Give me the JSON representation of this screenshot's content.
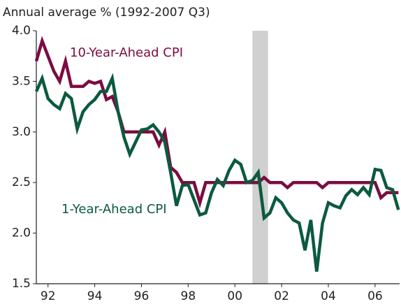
{
  "chart_data": {
    "type": "line",
    "title": "Annual average % (1992-2007 Q3)",
    "x": [
      1992,
      1992.25,
      1992.5,
      1992.75,
      1993,
      1993.25,
      1993.5,
      1993.75,
      1994,
      1994.25,
      1994.5,
      1994.75,
      1995,
      1995.25,
      1995.5,
      1995.75,
      1996,
      1996.25,
      1996.5,
      1996.75,
      1997,
      1997.25,
      1997.5,
      1997.75,
      1998,
      1998.25,
      1998.5,
      1998.75,
      1999,
      1999.25,
      1999.5,
      1999.75,
      2000,
      2000.25,
      2000.5,
      2000.75,
      2001,
      2001.25,
      2001.5,
      2001.75,
      2002,
      2002.25,
      2002.5,
      2002.75,
      2003,
      2003.25,
      2003.5,
      2003.75,
      2004,
      2004.25,
      2004.5,
      2004.75,
      2005,
      2005.25,
      2005.5,
      2005.75,
      2006,
      2006.25,
      2006.5,
      2006.75,
      2007,
      2007.25,
      2007.5
    ],
    "series": [
      {
        "name": "10-Year-Ahead CPI",
        "color": "#7b0c42",
        "values": [
          3.7,
          3.9,
          3.75,
          3.6,
          3.5,
          3.7,
          3.45,
          3.45,
          3.45,
          3.5,
          3.48,
          3.5,
          3.32,
          3.35,
          3.2,
          3.0,
          3.0,
          3.0,
          3.0,
          3.0,
          3.0,
          2.87,
          3.0,
          2.65,
          2.6,
          2.5,
          2.5,
          2.5,
          2.3,
          2.5,
          2.5,
          2.5,
          2.5,
          2.5,
          2.5,
          2.5,
          2.5,
          2.5,
          2.5,
          2.55,
          2.5,
          2.5,
          2.5,
          2.45,
          2.5,
          2.5,
          2.5,
          2.5,
          2.5,
          2.45,
          2.5,
          2.5,
          2.5,
          2.5,
          2.5,
          2.5,
          2.5,
          2.5,
          2.5,
          2.35,
          2.4,
          2.4,
          2.4
        ]
      },
      {
        "name": "1-Year-Ahead CPI",
        "color": "#0b5a3e",
        "values": [
          3.4,
          3.53,
          3.33,
          3.27,
          3.23,
          3.38,
          3.33,
          3.03,
          3.2,
          3.27,
          3.32,
          3.4,
          3.4,
          3.53,
          3.2,
          2.95,
          2.78,
          2.9,
          3.02,
          3.03,
          3.07,
          3.0,
          2.9,
          2.6,
          2.27,
          2.47,
          2.48,
          2.33,
          2.18,
          2.2,
          2.4,
          2.53,
          2.47,
          2.62,
          2.72,
          2.68,
          2.5,
          2.52,
          2.6,
          2.15,
          2.2,
          2.35,
          2.3,
          2.2,
          2.13,
          2.1,
          1.83,
          2.13,
          1.62,
          2.1,
          2.3,
          2.27,
          2.25,
          2.37,
          2.43,
          2.38,
          2.45,
          2.38,
          2.63,
          2.62,
          2.45,
          2.43,
          2.23
        ]
      }
    ],
    "shaded_region": [
      2001.25,
      2001.92
    ],
    "shaded_color": "#d0d0d0",
    "xlim": [
      1992,
      2007.55
    ],
    "xticks": [
      {
        "value": 1992.5,
        "label": "92"
      },
      {
        "value": 1994.5,
        "label": "94"
      },
      {
        "value": 1996.5,
        "label": "96"
      },
      {
        "value": 1998.5,
        "label": "98"
      },
      {
        "value": 2000.5,
        "label": "00"
      },
      {
        "value": 2002.5,
        "label": "02"
      },
      {
        "value": 2004.5,
        "label": "04"
      },
      {
        "value": 2006.5,
        "label": "06"
      }
    ],
    "ylim": [
      1.5,
      4
    ],
    "yticks": [
      {
        "value": 1.5,
        "label": "1.5"
      },
      {
        "value": 2,
        "label": "2.0"
      },
      {
        "value": 2.5,
        "label": "2.5"
      },
      {
        "value": 3,
        "label": "3.0"
      },
      {
        "value": 3.5,
        "label": "3.5"
      },
      {
        "value": 4,
        "label": "4.0"
      }
    ],
    "grid": false
  }
}
